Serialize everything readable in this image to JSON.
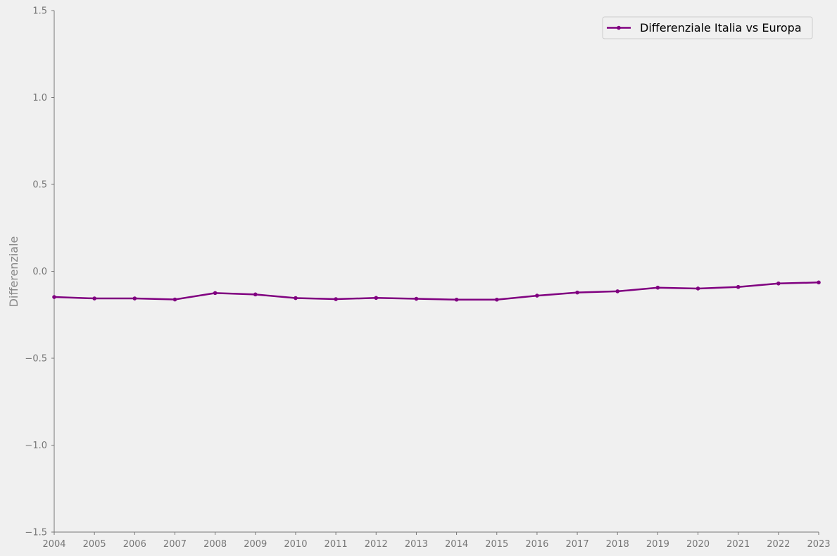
{
  "chart_data": {
    "type": "line",
    "title": "",
    "xlabel": "",
    "ylabel": "Differenziale",
    "x": [
      2004,
      2005,
      2006,
      2007,
      2008,
      2009,
      2010,
      2011,
      2012,
      2013,
      2014,
      2015,
      2016,
      2017,
      2018,
      2019,
      2020,
      2021,
      2022,
      2023
    ],
    "series": [
      {
        "name": "Differenziale Italia vs Europa",
        "color": "#800080",
        "marker": "circle",
        "values": [
          -0.148,
          -0.156,
          -0.156,
          -0.162,
          -0.125,
          -0.133,
          -0.154,
          -0.16,
          -0.153,
          -0.158,
          -0.163,
          -0.163,
          -0.14,
          -0.122,
          -0.115,
          -0.094,
          -0.099,
          -0.09,
          -0.07,
          -0.064
        ]
      }
    ],
    "xlim": [
      2004,
      2023
    ],
    "ylim": [
      -1.5,
      1.5
    ],
    "y_ticks": [
      -1.5,
      -1.0,
      -0.5,
      0.0,
      0.5,
      1.0,
      1.5
    ],
    "y_tick_labels": [
      "−1.5",
      "−1.0",
      "−0.5",
      "0.0",
      "0.5",
      "1.0",
      "1.5"
    ],
    "x_tick_labels": [
      "2004",
      "2005",
      "2006",
      "2007",
      "2008",
      "2009",
      "2010",
      "2011",
      "2012",
      "2013",
      "2014",
      "2015",
      "2016",
      "2017",
      "2018",
      "2019",
      "2020",
      "2021",
      "2022",
      "2023"
    ],
    "grid": false,
    "legend_position": "top-right",
    "background": "#f0f0f0",
    "axis_color": "#777777"
  }
}
